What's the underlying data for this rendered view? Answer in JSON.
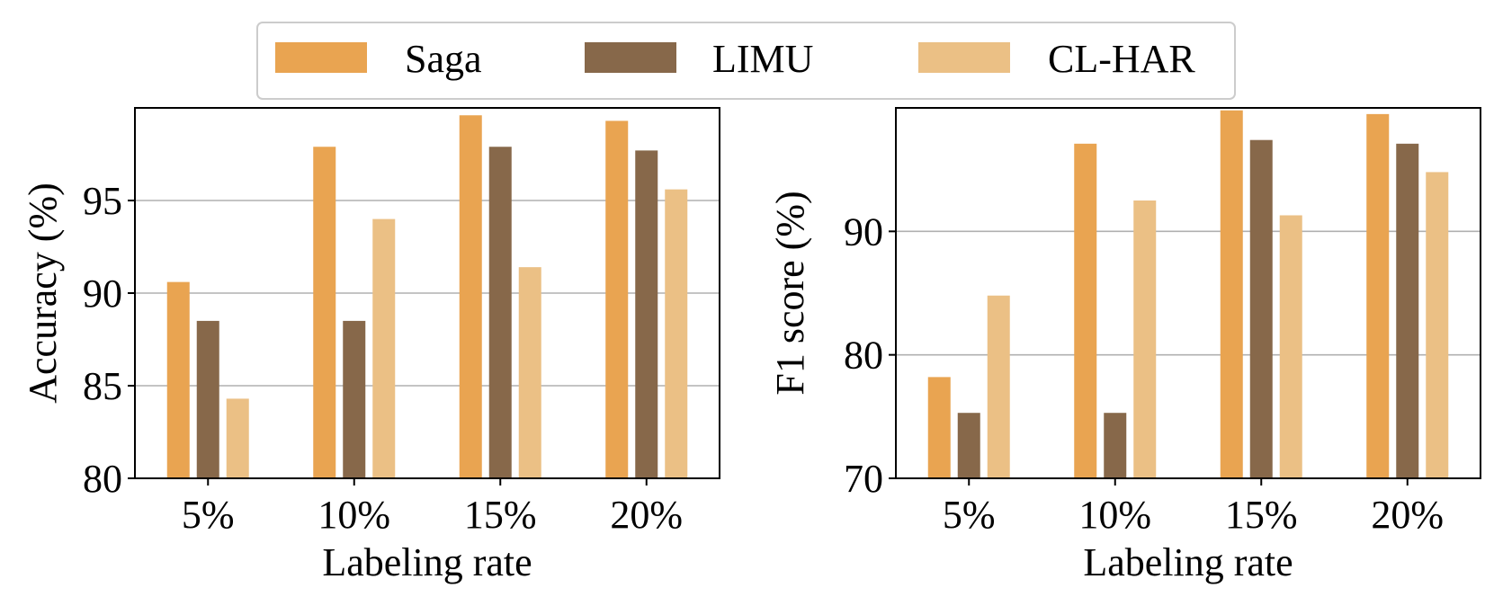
{
  "legend": {
    "placement": "top-center",
    "entries": [
      {
        "name": "Saga",
        "color": "#E9A451"
      },
      {
        "name": "LIMU",
        "color": "#87684A"
      },
      {
        "name": "CL-HAR",
        "color": "#EBC085"
      }
    ]
  },
  "chart_data": [
    {
      "type": "bar",
      "title": "",
      "xlabel": "Labeling rate",
      "ylabel": "Accuracy (%)",
      "categories": [
        "5%",
        "10%",
        "15%",
        "20%"
      ],
      "ylim": [
        80,
        100
      ],
      "yticks": [
        80,
        85,
        90,
        95
      ],
      "grid": "horizontal",
      "series": [
        {
          "name": "Saga",
          "values": [
            90.6,
            97.9,
            99.6,
            99.3
          ]
        },
        {
          "name": "LIMU",
          "values": [
            88.5,
            88.5,
            97.9,
            97.7
          ]
        },
        {
          "name": "CL-HAR",
          "values": [
            84.3,
            94.0,
            91.4,
            95.6
          ]
        }
      ]
    },
    {
      "type": "bar",
      "title": "",
      "xlabel": "Labeling rate",
      "ylabel": "F1 score (%)",
      "categories": [
        "5%",
        "10%",
        "15%",
        "20%"
      ],
      "ylim": [
        70,
        100
      ],
      "yticks": [
        70,
        80,
        90
      ],
      "grid": "horizontal",
      "series": [
        {
          "name": "Saga",
          "values": [
            78.2,
            97.1,
            99.8,
            99.5
          ]
        },
        {
          "name": "LIMU",
          "values": [
            75.3,
            75.3,
            97.4,
            97.1
          ]
        },
        {
          "name": "CL-HAR",
          "values": [
            84.8,
            92.5,
            91.3,
            94.8
          ]
        }
      ]
    }
  ]
}
